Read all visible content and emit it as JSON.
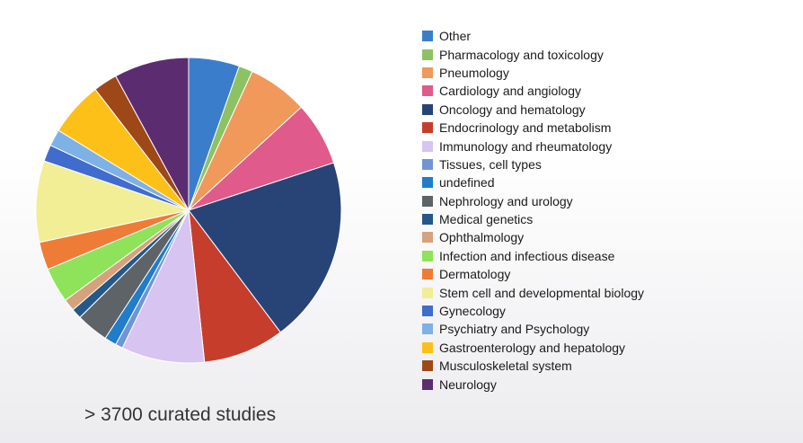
{
  "chart_data": {
    "type": "pie",
    "title": "",
    "legend_position": "right",
    "slices": [
      {
        "label": "Other",
        "value": 5.5,
        "color": "#3a7ecb"
      },
      {
        "label": "Pharmacology and toxicology",
        "value": 1.5,
        "color": "#8cc264"
      },
      {
        "label": "Pneumology",
        "value": 6.5,
        "color": "#f0995a"
      },
      {
        "label": "Cardiology and angiology",
        "value": 6.9,
        "color": "#e05a8c"
      },
      {
        "label": "Oncology and hematology",
        "value": 20.2,
        "color": "#284476"
      },
      {
        "label": "Endocrinology and metabolism",
        "value": 8.8,
        "color": "#c63d2c"
      },
      {
        "label": "Immunology and rheumatology",
        "value": 9.0,
        "color": "#d8c4f0"
      },
      {
        "label": "Tissues, cell types",
        "value": 0.8,
        "color": "#6f95d6"
      },
      {
        "label": "undefined",
        "value": 1.3,
        "color": "#1f7dc9"
      },
      {
        "label": "Nephrology and urology",
        "value": 3.5,
        "color": "#5e6368"
      },
      {
        "label": "Medical genetics",
        "value": 1.1,
        "color": "#245888"
      },
      {
        "label": "Ophthalmology",
        "value": 1.3,
        "color": "#d6a27c"
      },
      {
        "label": "Infection and infectious disease",
        "value": 3.8,
        "color": "#8ee35a"
      },
      {
        "label": "Dermatology",
        "value": 3.0,
        "color": "#ef7c36"
      },
      {
        "label": "Stem cell and developmental biology",
        "value": 8.8,
        "color": "#f1ee95"
      },
      {
        "label": "Gynecology",
        "value": 1.8,
        "color": "#3f6ccd"
      },
      {
        "label": "Psychiatry and Psychology",
        "value": 1.8,
        "color": "#7eb1e5"
      },
      {
        "label": "Gastroenterology and hepatology",
        "value": 5.9,
        "color": "#fcc018"
      },
      {
        "label": "Musculoskeletal system",
        "value": 2.6,
        "color": "#9e4818"
      },
      {
        "label": "Neurology",
        "value": 8.1,
        "color": "#5c2c70"
      }
    ]
  },
  "caption": "> 3700 curated studies"
}
